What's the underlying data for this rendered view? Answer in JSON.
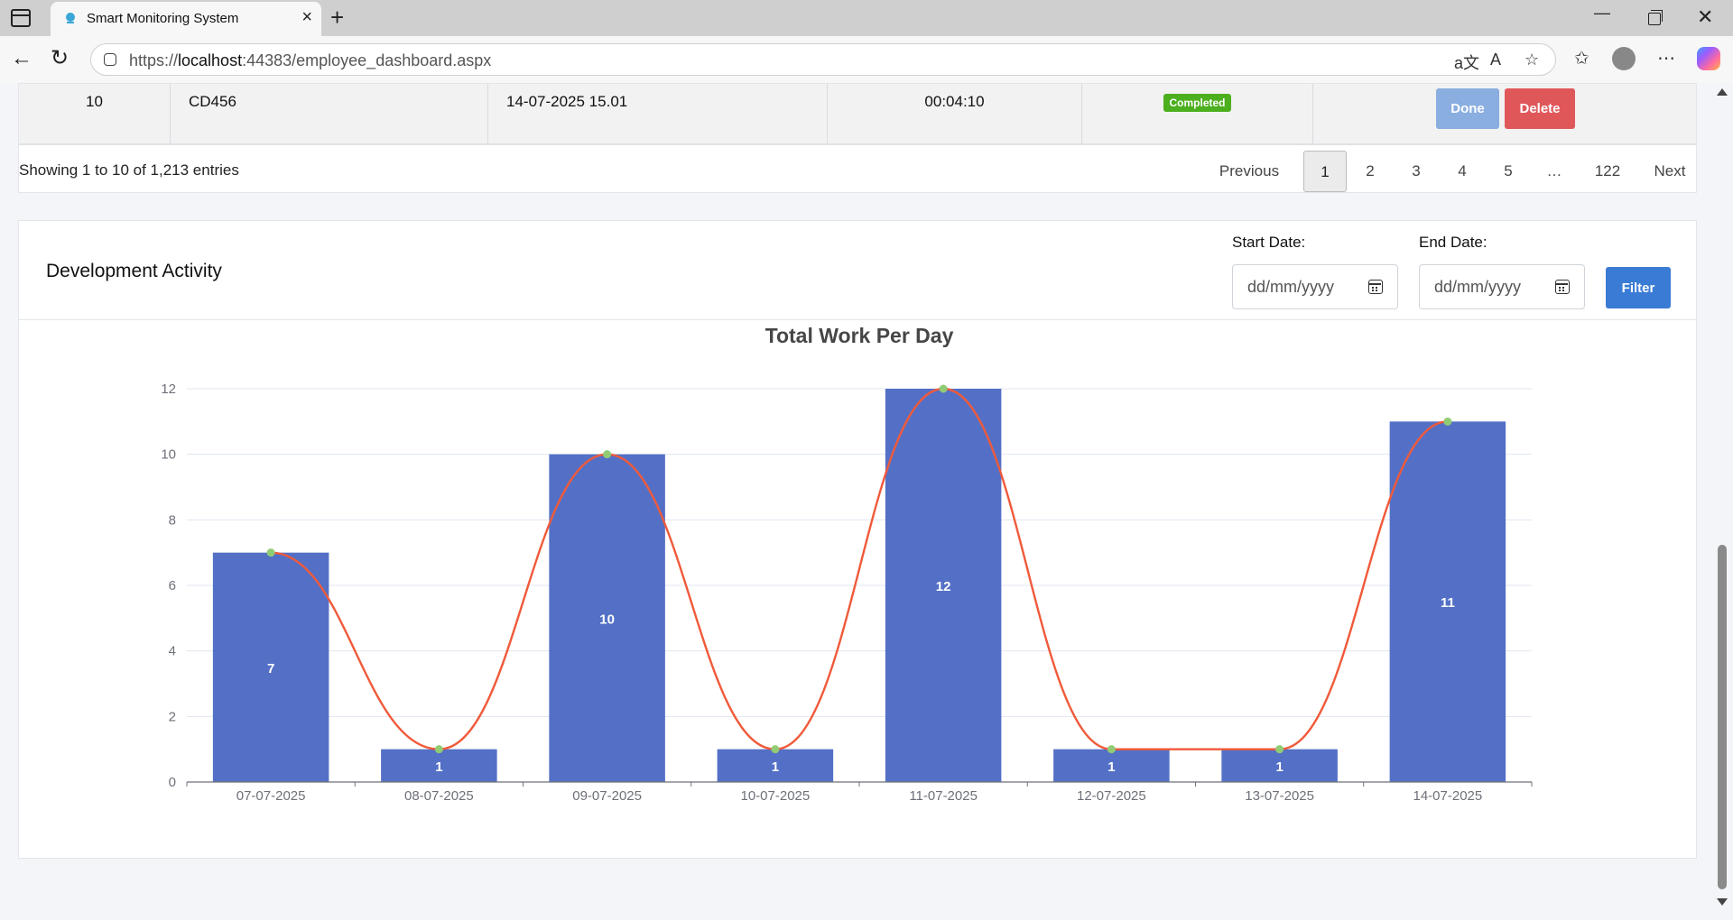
{
  "browser": {
    "tab_title": "Smart Monitoring System",
    "url_prefix": "https://",
    "url_host": "localhost",
    "url_rest": ":44383/employee_dashboard.aspx"
  },
  "table": {
    "row": {
      "no": "10",
      "code": "CD456",
      "datetime": "14-07-2025 15.01",
      "duration": "00:04:10",
      "status": "Completed",
      "done_label": "Done",
      "delete_label": "Delete"
    },
    "showing_text": "Showing 1 to 10 of 1,213 entries",
    "pagination": {
      "previous": "Previous",
      "pages": [
        "1",
        "2",
        "3",
        "4",
        "5",
        "…",
        "122"
      ],
      "next": "Next",
      "active": "1"
    }
  },
  "activity": {
    "title": "Development Activity",
    "start_label": "Start Date:",
    "end_label": "End Date:",
    "date_placeholder": "dd/mm/yyyy",
    "filter_label": "Filter"
  },
  "colors": {
    "bar": "#5470c6",
    "line": "#f05a3a",
    "point": "#91cc75",
    "status_completed": "#4caf1e",
    "filter_button": "#3a7bd5"
  },
  "chart_data": {
    "type": "bar",
    "title": "Total Work Per Day",
    "categories": [
      "07-07-2025",
      "08-07-2025",
      "09-07-2025",
      "10-07-2025",
      "11-07-2025",
      "12-07-2025",
      "13-07-2025",
      "14-07-2025"
    ],
    "series": [
      {
        "type": "bar",
        "values": [
          7,
          1,
          10,
          1,
          12,
          1,
          1,
          11
        ],
        "data_labels": true
      },
      {
        "type": "line",
        "smooth": true,
        "values": [
          7,
          1,
          10,
          1,
          12,
          1,
          1,
          11
        ]
      }
    ],
    "ylim": [
      0,
      12
    ],
    "yticks": [
      0,
      2,
      4,
      6,
      8,
      10,
      12
    ],
    "grid": true,
    "legend": "none"
  }
}
